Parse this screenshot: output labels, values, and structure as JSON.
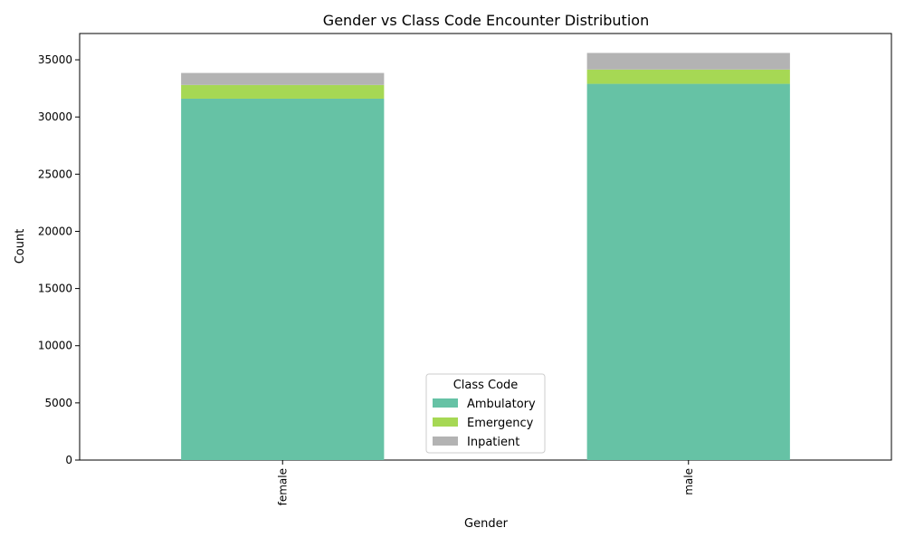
{
  "chart_data": {
    "type": "bar",
    "stacked": true,
    "title": "Gender vs Class Code Encounter Distribution",
    "xlabel": "Gender",
    "ylabel": "Count",
    "categories": [
      "female",
      "male"
    ],
    "series": [
      {
        "name": "Ambulatory",
        "color": "#66c2a5",
        "values": [
          31600,
          32900
        ]
      },
      {
        "name": "Emergency",
        "color": "#a6d854",
        "values": [
          1200,
          1250
        ]
      },
      {
        "name": "Inpatient",
        "color": "#b3b3b3",
        "values": [
          1050,
          1450
        ]
      }
    ],
    "ylim": [
      0,
      37300
    ],
    "yticks": [
      0,
      5000,
      10000,
      15000,
      20000,
      25000,
      30000,
      35000
    ],
    "grid": false,
    "legend": {
      "title": "Class Code",
      "placement": "lower-center"
    }
  }
}
